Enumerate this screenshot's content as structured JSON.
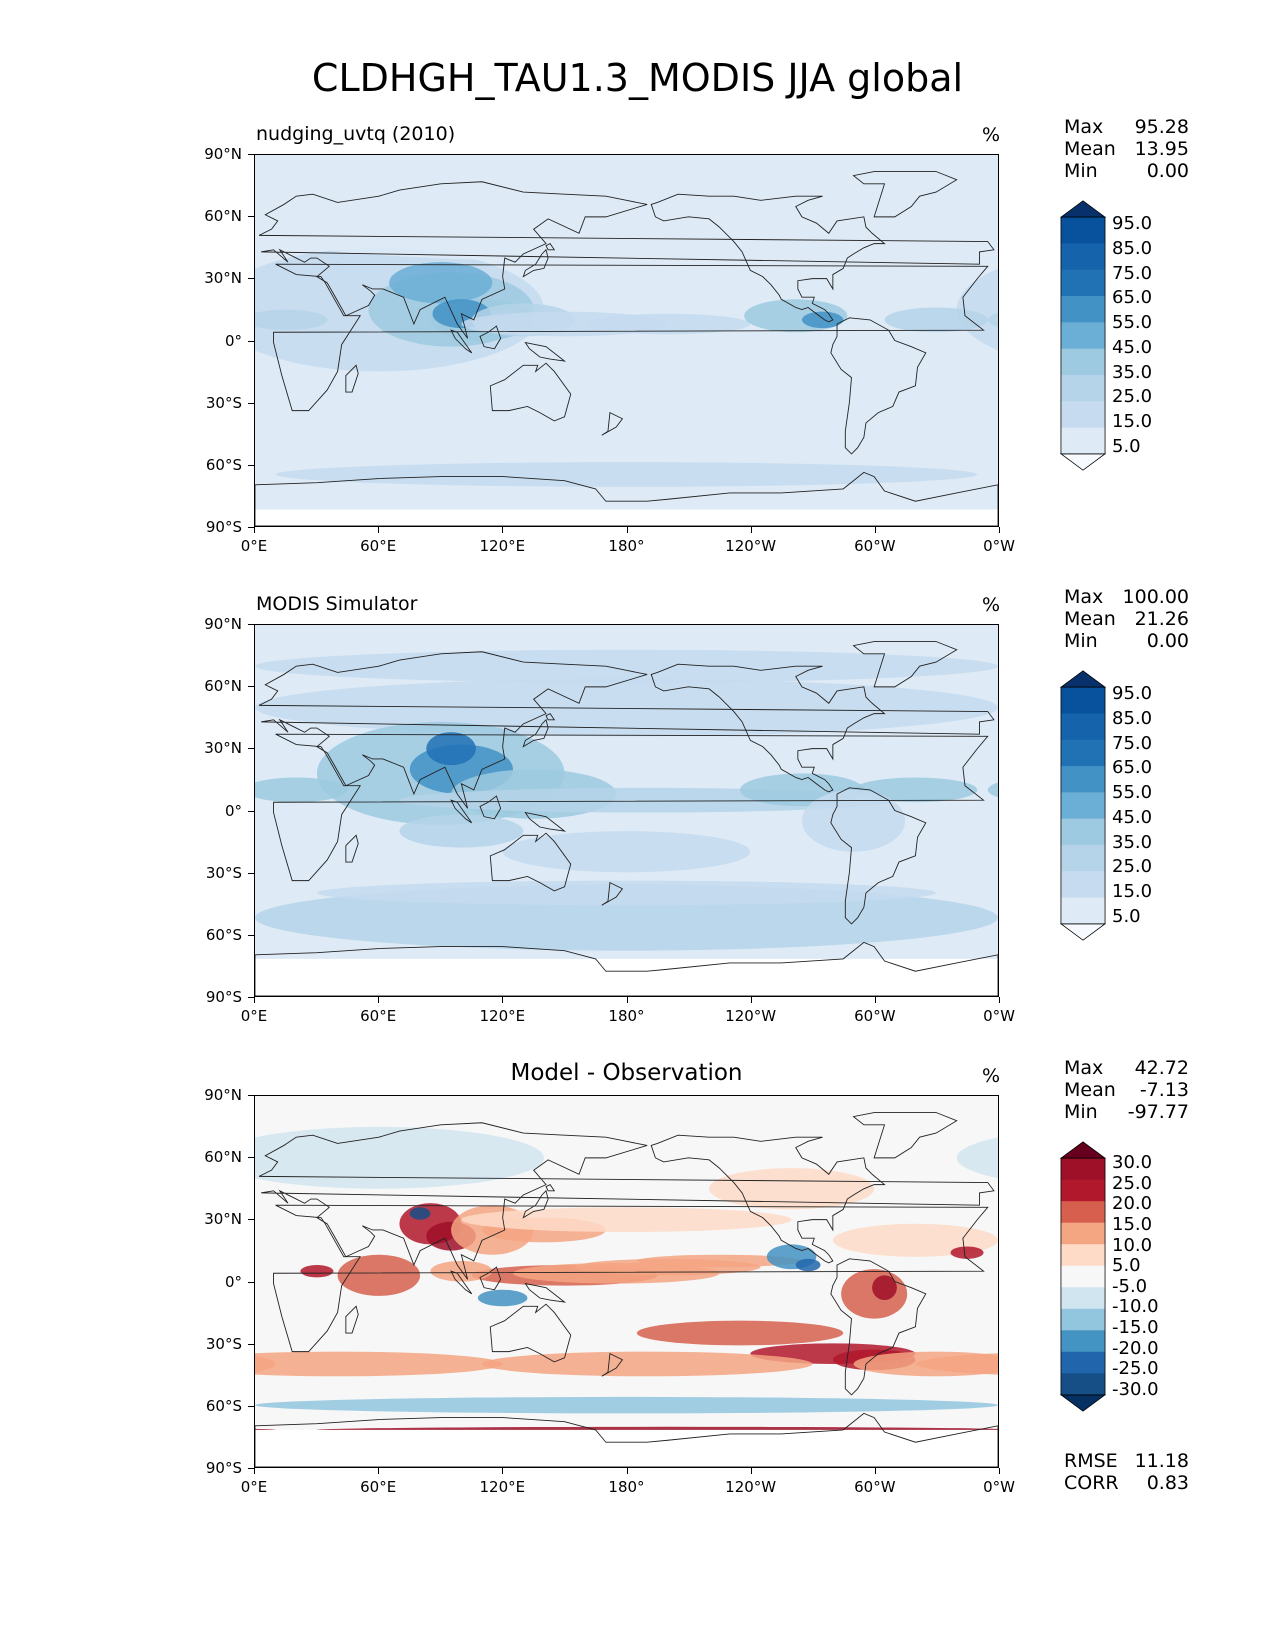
{
  "figure_title": "CLDHGH_TAU1.3_MODIS JJA global",
  "axes": {
    "lat_ticks": [
      "90°N",
      "60°N",
      "30°N",
      "0°",
      "30°S",
      "60°S",
      "90°S"
    ],
    "lon_ticks": [
      "0°E",
      "60°E",
      "120°E",
      "180°",
      "120°W",
      "60°W",
      "0°W"
    ]
  },
  "panels": [
    {
      "title": "nudging_uvtq (2010)",
      "unit": "%",
      "stats": [
        {
          "label": "Max",
          "value": "95.28"
        },
        {
          "label": "Mean",
          "value": "13.95"
        },
        {
          "label": "Min",
          "value": "0.00"
        }
      ],
      "colorbar_ticks": [
        "95.0",
        "85.0",
        "75.0",
        "65.0",
        "55.0",
        "45.0",
        "35.0",
        "25.0",
        "15.0",
        "5.0"
      ]
    },
    {
      "title": "MODIS Simulator",
      "unit": "%",
      "stats": [
        {
          "label": "Max",
          "value": "100.00"
        },
        {
          "label": "Mean",
          "value": "21.26"
        },
        {
          "label": "Min",
          "value": "0.00"
        }
      ],
      "colorbar_ticks": [
        "95.0",
        "85.0",
        "75.0",
        "65.0",
        "55.0",
        "45.0",
        "35.0",
        "25.0",
        "15.0",
        "5.0"
      ]
    },
    {
      "title": "Model - Observation",
      "unit": "%",
      "stats": [
        {
          "label": "Max",
          "value": "42.72"
        },
        {
          "label": "Mean",
          "value": "-7.13"
        },
        {
          "label": "Min",
          "value": "-97.77"
        }
      ],
      "colorbar_ticks": [
        "30.0",
        "25.0",
        "20.0",
        "15.0",
        "10.0",
        "5.0",
        "-5.0",
        "-10.0",
        "-15.0",
        "-20.0",
        "-25.0",
        "-30.0"
      ],
      "metrics": [
        {
          "label": "RMSE",
          "value": "11.18"
        },
        {
          "label": "CORR",
          "value": "0.83"
        }
      ]
    }
  ],
  "colors": {
    "blues": [
      "#f7fbff",
      "#deebf7",
      "#c6dbef",
      "#b5d4e9",
      "#9ecae1",
      "#6baed6",
      "#4292c6",
      "#2171b5",
      "#1563aa",
      "#08519c",
      "#08306b"
    ],
    "diff": [
      "#67001f",
      "#9e0f28",
      "#b2182b",
      "#d6604d",
      "#f4a582",
      "#fddbc7",
      "#f7f7f7",
      "#d1e5f0",
      "#92c5de",
      "#4393c3",
      "#2166ac",
      "#164f86",
      "#053061"
    ]
  },
  "chart_data": [
    {
      "type": "heatmap",
      "title": "nudging_uvtq (2010)",
      "variable": "CLDHGH_TAU1.3_MODIS",
      "season": "JJA",
      "unit": "%",
      "x_range": [
        0,
        360
      ],
      "y_range": [
        -90,
        90
      ],
      "levels": [
        0,
        5,
        15,
        25,
        35,
        45,
        55,
        65,
        75,
        85,
        95,
        100
      ],
      "max": 95.28,
      "mean": 13.95,
      "min": 0.0
    },
    {
      "type": "heatmap",
      "title": "MODIS Simulator",
      "variable": "CLDHGH_TAU1.3_MODIS",
      "season": "JJA",
      "unit": "%",
      "x_range": [
        0,
        360
      ],
      "y_range": [
        -90,
        90
      ],
      "levels": [
        0,
        5,
        15,
        25,
        35,
        45,
        55,
        65,
        75,
        85,
        95,
        100
      ],
      "max": 100.0,
      "mean": 21.26,
      "min": 0.0
    },
    {
      "type": "heatmap",
      "title": "Model - Observation",
      "unit": "%",
      "x_range": [
        0,
        360
      ],
      "y_range": [
        -90,
        90
      ],
      "levels": [
        -30,
        -25,
        -20,
        -15,
        -10,
        -5,
        5,
        10,
        15,
        20,
        25,
        30
      ],
      "max": 42.72,
      "mean": -7.13,
      "min": -97.77,
      "rmse": 11.18,
      "corr": 0.83
    }
  ]
}
